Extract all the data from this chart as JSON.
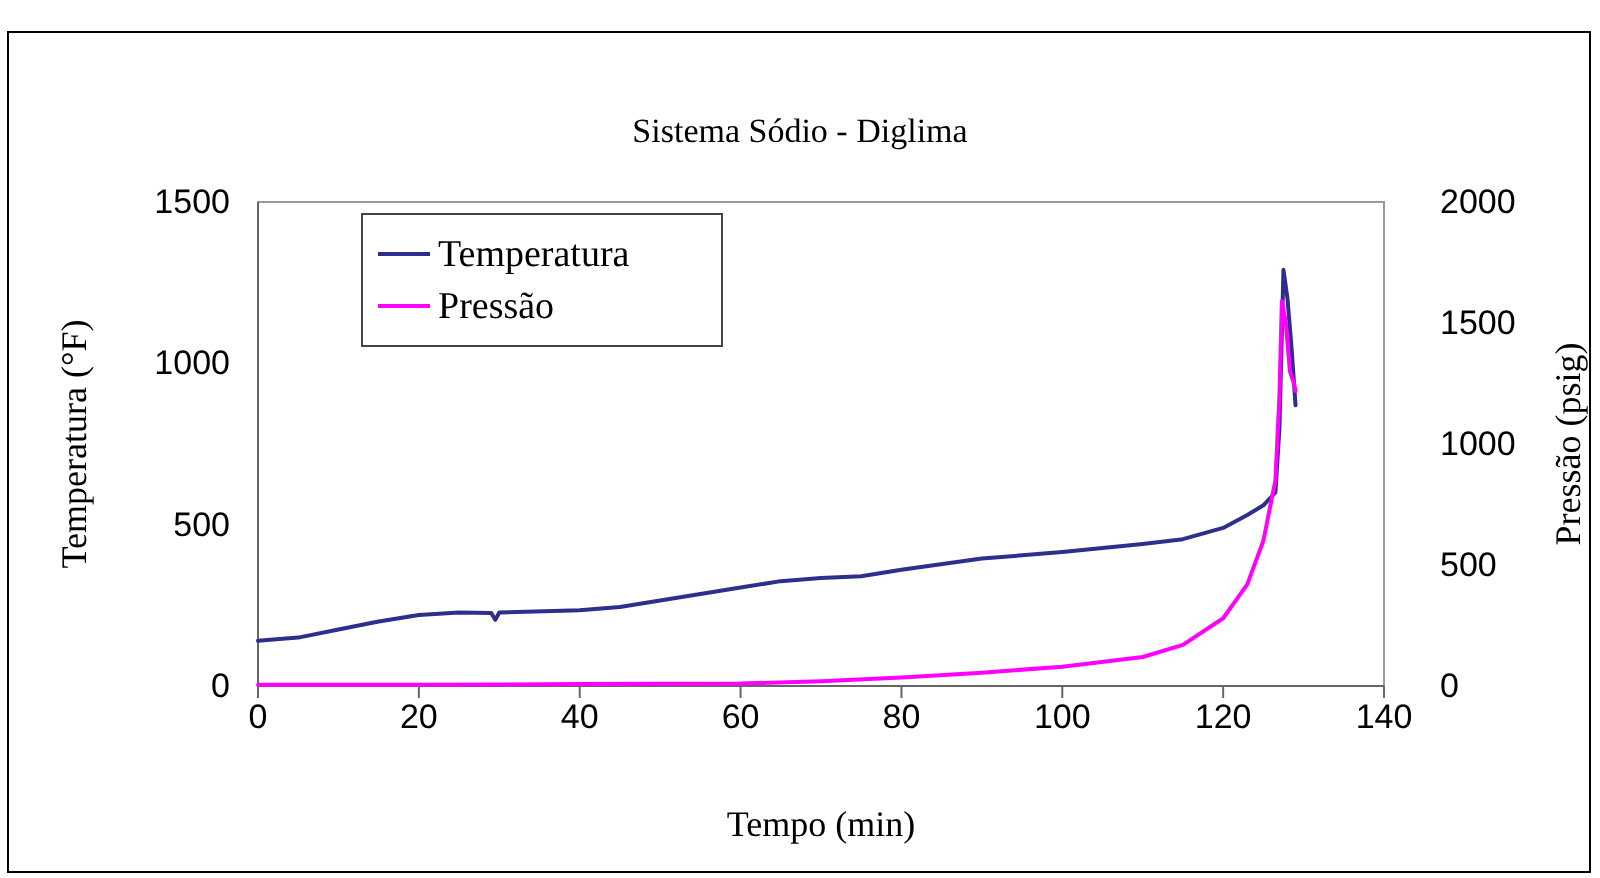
{
  "chart_data": {
    "type": "line",
    "title": "Sistema Sódio - Diglima",
    "xlabel": "Tempo (min)",
    "ylabel": "Temperatura (°F)",
    "y2label": "Pressão (psig)",
    "xlim": [
      0,
      140
    ],
    "xticks": [
      0,
      20,
      40,
      60,
      80,
      100,
      120,
      140
    ],
    "ylim": [
      0,
      1500
    ],
    "yticks": [
      0,
      500,
      1000,
      1500
    ],
    "y2lim": [
      0,
      2000
    ],
    "y2ticks": [
      0,
      500,
      1000,
      1500,
      2000
    ],
    "legend": "top left",
    "grid": false,
    "marker": "none",
    "line_style": "solid",
    "series": [
      {
        "name": "Temperatura",
        "color": "#2e2f8c",
        "x": [
          0,
          5,
          10,
          15,
          20,
          25,
          29,
          29.5,
          30,
          40,
          45,
          50,
          60,
          65,
          70,
          75,
          80,
          90,
          100,
          110,
          115,
          120,
          123,
          125,
          126.5,
          127,
          127.5,
          128,
          128.5,
          129
        ],
        "values": [
          140,
          150,
          175,
          200,
          220,
          228,
          226,
          205,
          228,
          235,
          245,
          265,
          305,
          325,
          335,
          340,
          360,
          395,
          415,
          440,
          455,
          490,
          530,
          560,
          600,
          800,
          1290,
          1200,
          1050,
          870
        ]
      },
      {
        "name": "Pressão",
        "color": "#ff00ff",
        "axis": "y2",
        "x": [
          0,
          20,
          40,
          60,
          70,
          80,
          90,
          100,
          110,
          115,
          120,
          123,
          125,
          126.5,
          127,
          127.3,
          127.8,
          128.3,
          128.8,
          129
        ],
        "values": [
          5,
          5,
          8,
          10,
          20,
          35,
          55,
          80,
          120,
          170,
          280,
          420,
          600,
          850,
          1200,
          1590,
          1500,
          1300,
          1250,
          1220
        ]
      }
    ]
  }
}
